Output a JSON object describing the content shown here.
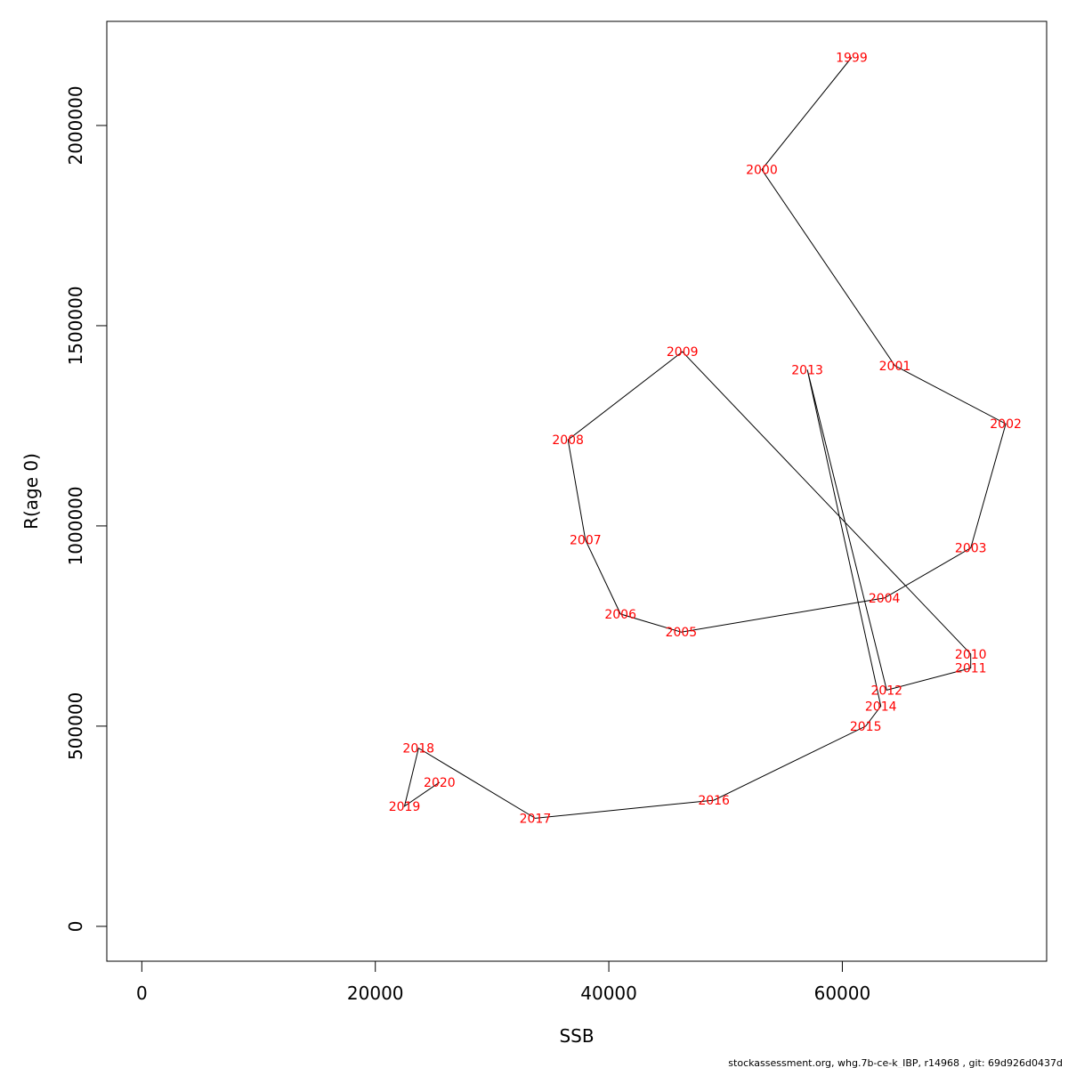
{
  "chart_data": {
    "type": "line",
    "title": "",
    "xlabel": "SSB",
    "ylabel": "R(age 0)",
    "xlim": [
      -3000,
      77500
    ],
    "ylim": [
      -87000,
      2260000
    ],
    "x_ticks": [
      0,
      20000,
      40000,
      60000
    ],
    "x_tick_labels": [
      "0",
      "20000",
      "40000",
      "60000"
    ],
    "y_ticks": [
      0,
      500000,
      1000000,
      1500000,
      2000000
    ],
    "y_tick_labels": [
      "0",
      "500000",
      "1000000",
      "1500000",
      "2000000"
    ],
    "grid": false,
    "line_color": "#000000",
    "label_color": "#ff0000",
    "points": [
      {
        "label": "1999",
        "x": 60800,
        "y": 2170000
      },
      {
        "label": "2000",
        "x": 53100,
        "y": 1890000
      },
      {
        "label": "2001",
        "x": 64500,
        "y": 1400000
      },
      {
        "label": "2002",
        "x": 74000,
        "y": 1255000
      },
      {
        "label": "2003",
        "x": 71000,
        "y": 945000
      },
      {
        "label": "2004",
        "x": 63600,
        "y": 820000
      },
      {
        "label": "2005",
        "x": 46200,
        "y": 735000
      },
      {
        "label": "2006",
        "x": 41000,
        "y": 780000
      },
      {
        "label": "2007",
        "x": 38000,
        "y": 965000
      },
      {
        "label": "2008",
        "x": 36500,
        "y": 1215000
      },
      {
        "label": "2009",
        "x": 46300,
        "y": 1435000
      },
      {
        "label": "2010",
        "x": 71000,
        "y": 680000
      },
      {
        "label": "2011",
        "x": 71000,
        "y": 645000
      },
      {
        "label": "2012",
        "x": 63800,
        "y": 590000
      },
      {
        "label": "2013",
        "x": 57000,
        "y": 1390000
      },
      {
        "label": "2014",
        "x": 63300,
        "y": 550000
      },
      {
        "label": "2015",
        "x": 62000,
        "y": 500000
      },
      {
        "label": "2016",
        "x": 49000,
        "y": 315000
      },
      {
        "label": "2017",
        "x": 33700,
        "y": 270000
      },
      {
        "label": "2018",
        "x": 23700,
        "y": 445000
      },
      {
        "label": "2019",
        "x": 22500,
        "y": 300000
      },
      {
        "label": "2020",
        "x": 25500,
        "y": 360000
      }
    ]
  },
  "footer": {
    "text": "stockassessment.org, whg.7b-ce-k_IBP, r14968 , git: 69d926d0437d"
  }
}
